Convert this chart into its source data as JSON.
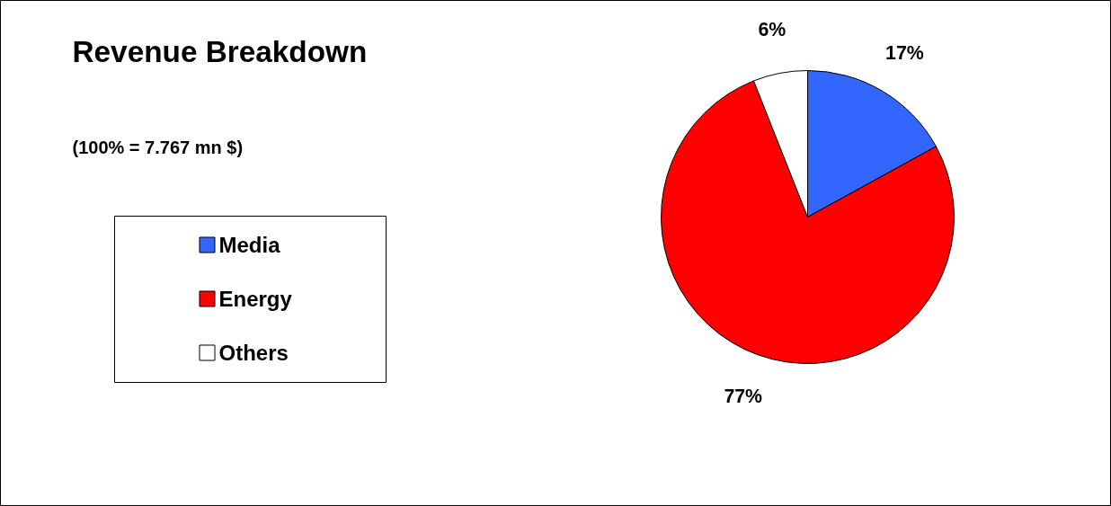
{
  "chart_data": {
    "type": "pie",
    "title": "Revenue Breakdown",
    "subtitle": "(100% = 7.767 mn $)",
    "categories": [
      "Media",
      "Energy",
      "Others"
    ],
    "values": [
      17,
      77,
      6
    ],
    "colors": [
      "#3366ff",
      "#ff0000",
      "#ffffff"
    ],
    "value_labels": [
      "17%",
      "77%",
      "6%"
    ],
    "legend": "left"
  }
}
